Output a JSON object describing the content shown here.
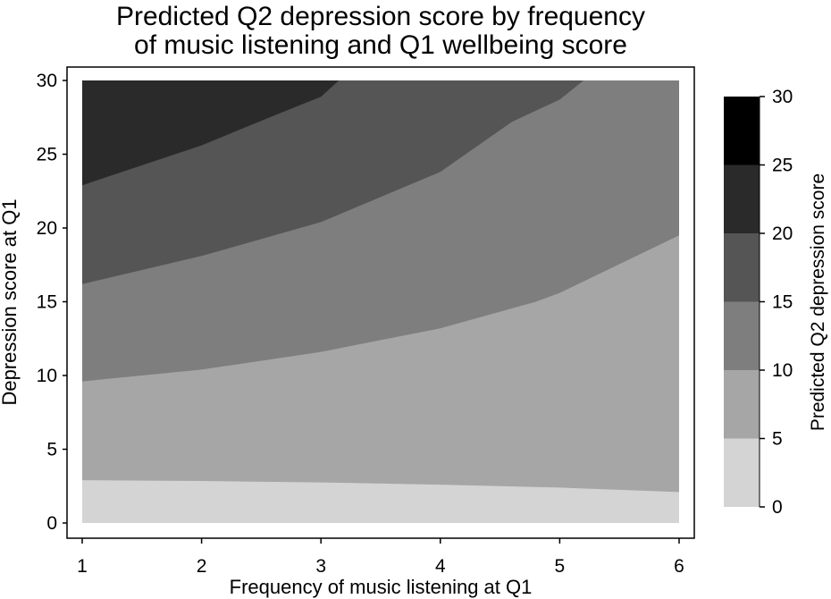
{
  "chart_data": {
    "type": "contour",
    "title": [
      "Predicted Q2 depression score by frequency",
      "of music listening and Q1 wellbeing score"
    ],
    "xlabel": "Frequency of music listening at Q1",
    "ylabel": "Depression score at Q1",
    "x_ticks": [
      1,
      2,
      3,
      4,
      5,
      6
    ],
    "y_ticks": [
      0,
      5,
      10,
      15,
      20,
      25,
      30
    ],
    "xlim": [
      1,
      6
    ],
    "ylim": [
      0,
      30
    ],
    "legend": {
      "title": "Predicted Q2 depression score",
      "ticks": [
        0,
        5,
        10,
        15,
        20,
        25,
        30
      ],
      "levels": [
        {
          "range": [
            0,
            5
          ],
          "color": "#d4d4d4"
        },
        {
          "range": [
            5,
            10
          ],
          "color": "#a6a6a6"
        },
        {
          "range": [
            10,
            15
          ],
          "color": "#7e7e7e"
        },
        {
          "range": [
            15,
            20
          ],
          "color": "#555555"
        },
        {
          "range": [
            20,
            25
          ],
          "color": "#2a2a2a"
        },
        {
          "range": [
            25,
            30
          ],
          "color": "#000000"
        }
      ]
    },
    "contour_lines": [
      {
        "level": 5,
        "points": [
          [
            1,
            2.9
          ],
          [
            2,
            2.85
          ],
          [
            3,
            2.75
          ],
          [
            4,
            2.6
          ],
          [
            5,
            2.4
          ],
          [
            6,
            2.1
          ]
        ]
      },
      {
        "level": 10,
        "points": [
          [
            1,
            9.6
          ],
          [
            2,
            10.4
          ],
          [
            3,
            11.6
          ],
          [
            4,
            13.2
          ],
          [
            4.8,
            15.0
          ],
          [
            5,
            15.6
          ],
          [
            6,
            19.5
          ]
        ]
      },
      {
        "level": 15,
        "points": [
          [
            1,
            16.2
          ],
          [
            2,
            18.1
          ],
          [
            3,
            20.4
          ],
          [
            4,
            23.8
          ],
          [
            4.6,
            27.2
          ],
          [
            5,
            28.7
          ],
          [
            5.2,
            30
          ]
        ]
      },
      {
        "level": 20,
        "points": [
          [
            1,
            22.9
          ],
          [
            2,
            25.6
          ],
          [
            2.6,
            27.6
          ],
          [
            3,
            28.9
          ],
          [
            3.15,
            30
          ]
        ]
      }
    ]
  }
}
